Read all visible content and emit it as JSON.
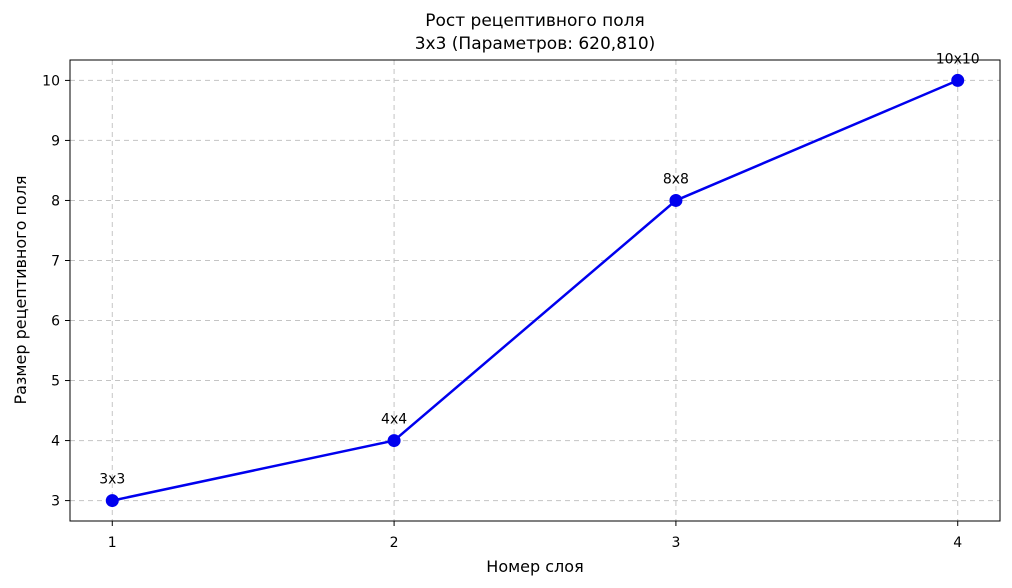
{
  "chart_data": {
    "type": "line",
    "title": "Рост рецептивного поля",
    "subtitle": "3x3 (Параметров: 620,810)",
    "xlabel": "Номер слоя",
    "ylabel": "Размер рецептивного поля",
    "x": [
      1,
      2,
      3,
      4
    ],
    "y": [
      3,
      4,
      8,
      10
    ],
    "point_labels": [
      "3x3",
      "4x4",
      "8x8",
      "10x10"
    ],
    "xticks": [
      "1",
      "2",
      "3",
      "4"
    ],
    "yticks": [
      "3",
      "4",
      "5",
      "6",
      "7",
      "8",
      "9",
      "10"
    ],
    "xlim": [
      0.85,
      4.15
    ],
    "ylim": [
      2.66,
      10.34
    ],
    "grid": true,
    "line_color": "#0000ee",
    "marker_color": "#0000ee"
  }
}
